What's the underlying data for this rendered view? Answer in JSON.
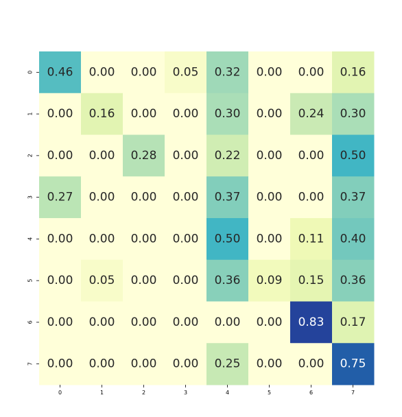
{
  "chart_data": {
    "type": "heatmap",
    "title": "",
    "xlabel": "",
    "ylabel": "",
    "x_categories": [
      "0",
      "1",
      "2",
      "3",
      "4",
      "5",
      "6",
      "7"
    ],
    "y_categories": [
      "0",
      "1",
      "2",
      "3",
      "4",
      "5",
      "6",
      "7"
    ],
    "values": [
      [
        0.46,
        0.0,
        0.0,
        0.05,
        0.32,
        0.0,
        0.0,
        0.16
      ],
      [
        0.0,
        0.16,
        0.0,
        0.0,
        0.3,
        0.0,
        0.24,
        0.3
      ],
      [
        0.0,
        0.0,
        0.28,
        0.0,
        0.22,
        0.0,
        0.0,
        0.5
      ],
      [
        0.27,
        0.0,
        0.0,
        0.0,
        0.37,
        0.0,
        0.0,
        0.37
      ],
      [
        0.0,
        0.0,
        0.0,
        0.0,
        0.5,
        0.0,
        0.11,
        0.4
      ],
      [
        0.0,
        0.05,
        0.0,
        0.0,
        0.36,
        0.09,
        0.15,
        0.36
      ],
      [
        0.0,
        0.0,
        0.0,
        0.0,
        0.0,
        0.0,
        0.83,
        0.17
      ],
      [
        0.0,
        0.0,
        0.0,
        0.0,
        0.25,
        0.0,
        0.0,
        0.75
      ]
    ],
    "value_labels": [
      [
        "0.46",
        "0.00",
        "0.00",
        "0.05",
        "0.32",
        "0.00",
        "0.00",
        "0.16"
      ],
      [
        "0.00",
        "0.16",
        "0.00",
        "0.00",
        "0.30",
        "0.00",
        "0.24",
        "0.30"
      ],
      [
        "0.00",
        "0.00",
        "0.28",
        "0.00",
        "0.22",
        "0.00",
        "0.00",
        "0.50"
      ],
      [
        "0.27",
        "0.00",
        "0.00",
        "0.00",
        "0.37",
        "0.00",
        "0.00",
        "0.37"
      ],
      [
        "0.00",
        "0.00",
        "0.00",
        "0.00",
        "0.50",
        "0.00",
        "0.11",
        "0.40"
      ],
      [
        "0.00",
        "0.05",
        "0.00",
        "0.00",
        "0.36",
        "0.09",
        "0.15",
        "0.36"
      ],
      [
        "0.00",
        "0.00",
        "0.00",
        "0.00",
        "0.00",
        "0.00",
        "0.83",
        "0.17"
      ],
      [
        "0.00",
        "0.00",
        "0.00",
        "0.00",
        "0.25",
        "0.00",
        "0.00",
        "0.75"
      ]
    ],
    "colormap": "YlGnBu",
    "color_range": [
      0,
      1
    ],
    "colorbar": false,
    "grid": false
  }
}
